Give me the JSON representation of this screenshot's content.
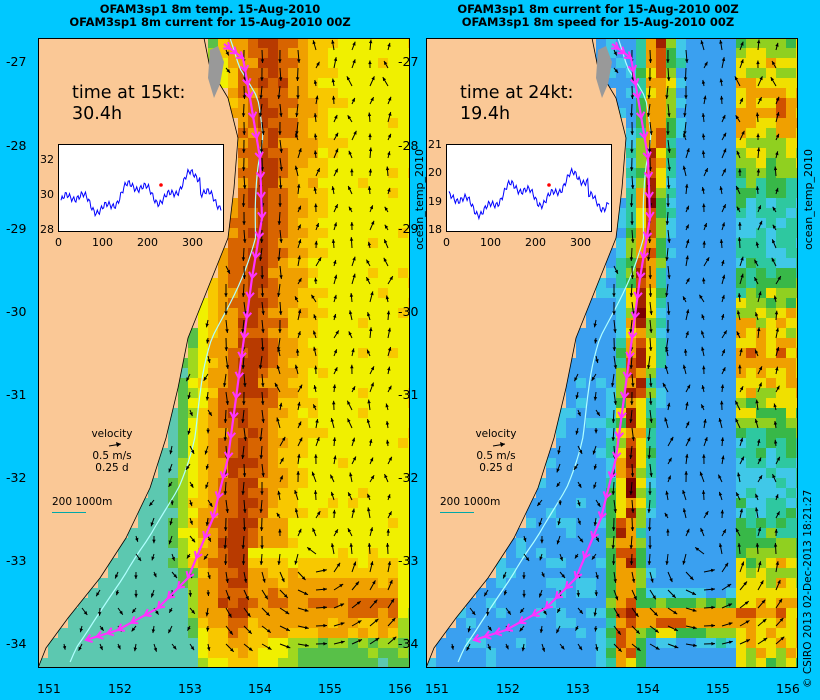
{
  "panels": [
    {
      "title_line1": "OFAM3sp1 8m temp. 15-Aug-2010",
      "title_line2": "OFAM3sp1 8m current for 15-Aug-2010 00Z",
      "time_label": "time at 15kt:",
      "time_value": "30.4h",
      "inset": {
        "yticks": [
          "32",
          "30",
          "28"
        ],
        "xticks": [
          "0",
          "100",
          "200",
          "300"
        ],
        "ylim": [
          28,
          33
        ],
        "xlim": [
          0,
          365
        ]
      },
      "velocity_label": "velocity",
      "velocity_speed": "0.5 m/s",
      "velocity_time": "0.25 d",
      "isobath_label": "200  1000m",
      "field": "temperature"
    },
    {
      "title_line1": "OFAM3sp1 8m current for 15-Aug-2010 00Z",
      "title_line2": "OFAM3sp1 8m speed for 15-Aug-2010 00Z",
      "time_label": "time at 24kt:",
      "time_value": "19.4h",
      "inset": {
        "yticks": [
          "21",
          "20",
          "19",
          "18"
        ],
        "xticks": [
          "0",
          "100",
          "200",
          "300"
        ],
        "ylim": [
          18,
          21
        ],
        "xlim": [
          0,
          365
        ]
      },
      "velocity_label": "velocity",
      "velocity_speed": "0.5 m/s",
      "velocity_time": "0.25 d",
      "isobath_label": "200  1000m",
      "field": "speed"
    }
  ],
  "lat_ticks": [
    "-27",
    "-28",
    "-29",
    "-30",
    "-31",
    "-32",
    "-33",
    "-34"
  ],
  "lon_ticks": [
    "151",
    "152",
    "153",
    "154",
    "155",
    "156"
  ],
  "side_label_1": "ocean_temp_2010",
  "side_label_2": "ocean_temp_2010",
  "credit": "© CSIRO 2013   02-Dec-2013 18:21:27",
  "colors": {
    "background": "#00c8ff",
    "land": "#fac896",
    "route": "#ff33ff",
    "isobath": "#b0ffff"
  }
}
